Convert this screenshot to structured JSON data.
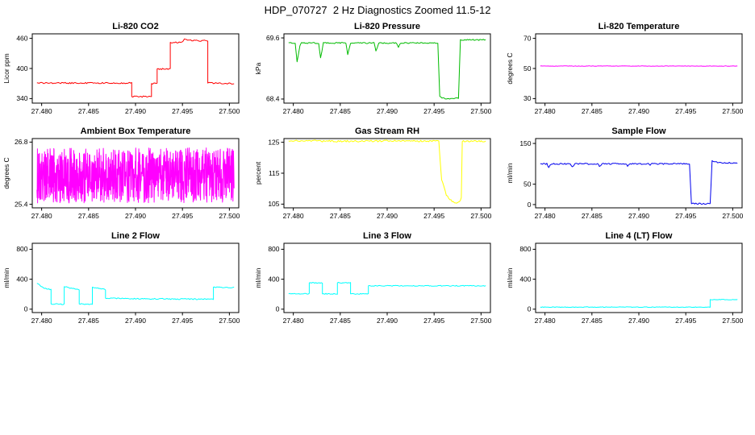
{
  "page_title": "HDP_070727  2 Hz Diagnostics Zoomed 11.5-12",
  "x_axis": {
    "range": [
      27.479,
      27.501
    ],
    "ticks": [
      27.48,
      27.485,
      27.49,
      27.495,
      27.5
    ],
    "tick_labels": [
      "27.480",
      "27.485",
      "27.490",
      "27.495",
      "27.500"
    ]
  },
  "chart_data": [
    {
      "type": "line",
      "title": "Li-820 CO2",
      "ylabel": "Licor ppm",
      "color": "#FF0000",
      "ylim": [
        331,
        469
      ],
      "y_ticks": [
        340,
        400,
        460
      ],
      "y_tick_labels": [
        "340",
        "400",
        "460"
      ],
      "jitter": 1.3,
      "points": [
        [
          27.4795,
          371
        ],
        [
          27.4896,
          371
        ],
        [
          27.4896,
          344
        ],
        [
          27.4917,
          344
        ],
        [
          27.4917,
          370
        ],
        [
          27.4923,
          370
        ],
        [
          27.4923,
          399
        ],
        [
          27.4937,
          399
        ],
        [
          27.4937,
          452
        ],
        [
          27.495,
          452
        ],
        [
          27.4952,
          458
        ],
        [
          27.496,
          456
        ],
        [
          27.4977,
          455
        ],
        [
          27.4977,
          371
        ],
        [
          27.5005,
          370
        ]
      ]
    },
    {
      "type": "line",
      "title": "Li-820 Pressure",
      "ylabel": "kPa",
      "color": "#00BB00",
      "ylim": [
        68.32,
        69.68
      ],
      "y_ticks": [
        68.4,
        69.6
      ],
      "y_tick_labels": [
        "68.4",
        "69.6"
      ],
      "jitter": 0.012,
      "points": [
        [
          27.4795,
          69.5
        ],
        [
          27.4802,
          69.5
        ],
        [
          27.4804,
          69.13
        ],
        [
          27.4807,
          69.45
        ],
        [
          27.4809,
          69.5
        ],
        [
          27.4827,
          69.5
        ],
        [
          27.4829,
          69.2
        ],
        [
          27.4832,
          69.5
        ],
        [
          27.4856,
          69.5
        ],
        [
          27.4858,
          69.27
        ],
        [
          27.4861,
          69.5
        ],
        [
          27.4886,
          69.5
        ],
        [
          27.4888,
          69.35
        ],
        [
          27.4891,
          69.5
        ],
        [
          27.491,
          69.5
        ],
        [
          27.4912,
          69.42
        ],
        [
          27.4914,
          69.5
        ],
        [
          27.4954,
          69.5
        ],
        [
          27.4956,
          68.45
        ],
        [
          27.4962,
          68.4
        ],
        [
          27.4976,
          68.42
        ],
        [
          27.4978,
          69.56
        ],
        [
          27.5005,
          69.56
        ]
      ]
    },
    {
      "type": "line",
      "title": "Li-820 Temperature",
      "ylabel": "degrees C",
      "color": "#FF00FF",
      "ylim": [
        27,
        73
      ],
      "y_ticks": [
        30,
        50,
        70
      ],
      "y_tick_labels": [
        "30",
        "50",
        "70"
      ],
      "jitter": 0.12,
      "points": [
        [
          27.4795,
          51.6
        ],
        [
          27.5005,
          51.6
        ]
      ]
    },
    {
      "type": "line",
      "title": "Ambient Box Temperature",
      "ylabel": "degrees C",
      "color": "#FF00FF",
      "ylim": [
        25.32,
        26.88
      ],
      "y_ticks": [
        25.4,
        26.8
      ],
      "y_tick_labels": [
        "25.4",
        "26.8"
      ],
      "noise": {
        "seed": 9,
        "n": 900,
        "mean": 26.05,
        "amplitude": 0.62,
        "x0": 27.4795,
        "x1": 27.5005
      }
    },
    {
      "type": "line",
      "title": "Gas Stream RH",
      "ylabel": "percent",
      "color": "#FFFF00",
      "ylim": [
        103.8,
        126.2
      ],
      "y_ticks": [
        105,
        115,
        125
      ],
      "y_tick_labels": [
        "105",
        "115",
        "125"
      ],
      "jitter": 0.3,
      "points": [
        [
          27.4795,
          125.4
        ],
        [
          27.4955,
          125.4
        ],
        [
          27.4958,
          113
        ],
        [
          27.4963,
          108
        ],
        [
          27.4968,
          106.2
        ],
        [
          27.4974,
          105.2
        ],
        [
          27.4977,
          105.6
        ],
        [
          27.4979,
          107
        ],
        [
          27.498,
          125.4
        ],
        [
          27.5005,
          125.4
        ]
      ]
    },
    {
      "type": "line",
      "title": "Sample Flow",
      "ylabel": "ml/min",
      "color": "#0000EE",
      "ylim": [
        -8,
        162
      ],
      "y_ticks": [
        0,
        50,
        150
      ],
      "y_tick_labels": [
        "0",
        "50",
        "150"
      ],
      "jitter": 1.6,
      "points": [
        [
          27.4795,
          100
        ],
        [
          27.4802,
          100
        ],
        [
          27.4804,
          92
        ],
        [
          27.4807,
          100
        ],
        [
          27.4827,
          100
        ],
        [
          27.4829,
          93
        ],
        [
          27.4832,
          100
        ],
        [
          27.4856,
          100
        ],
        [
          27.4858,
          94
        ],
        [
          27.4861,
          100
        ],
        [
          27.4886,
          100
        ],
        [
          27.4888,
          95
        ],
        [
          27.4891,
          100
        ],
        [
          27.491,
          100
        ],
        [
          27.4912,
          96
        ],
        [
          27.4914,
          100
        ],
        [
          27.4954,
          100
        ],
        [
          27.4956,
          2
        ],
        [
          27.4976,
          2
        ],
        [
          27.4978,
          107
        ],
        [
          27.4984,
          103
        ],
        [
          27.5005,
          102
        ]
      ]
    },
    {
      "type": "line",
      "title": "Line 2 Flow",
      "ylabel": "ml/min",
      "color": "#00FFFF",
      "ylim": [
        -45,
        880
      ],
      "y_ticks": [
        0,
        400,
        800
      ],
      "y_tick_labels": [
        "0",
        "400",
        "800"
      ],
      "jitter": 7,
      "points": [
        [
          27.4795,
          345
        ],
        [
          27.4803,
          280
        ],
        [
          27.481,
          262
        ],
        [
          27.481,
          70
        ],
        [
          27.4824,
          66
        ],
        [
          27.4824,
          300
        ],
        [
          27.484,
          258
        ],
        [
          27.484,
          70
        ],
        [
          27.4854,
          66
        ],
        [
          27.4854,
          295
        ],
        [
          27.4868,
          262
        ],
        [
          27.4868,
          148
        ],
        [
          27.49,
          140
        ],
        [
          27.4983,
          132
        ],
        [
          27.4983,
          295
        ],
        [
          27.5005,
          288
        ]
      ]
    },
    {
      "type": "line",
      "title": "Line 3 Flow",
      "ylabel": "ml/min",
      "color": "#00FFFF",
      "ylim": [
        -45,
        880
      ],
      "y_ticks": [
        0,
        400,
        800
      ],
      "y_tick_labels": [
        "0",
        "400",
        "800"
      ],
      "jitter": 6,
      "points": [
        [
          27.4795,
          205
        ],
        [
          27.4817,
          205
        ],
        [
          27.4817,
          352
        ],
        [
          27.4831,
          352
        ],
        [
          27.4831,
          205
        ],
        [
          27.4847,
          205
        ],
        [
          27.4847,
          352
        ],
        [
          27.4861,
          352
        ],
        [
          27.4861,
          205
        ],
        [
          27.488,
          205
        ],
        [
          27.488,
          312
        ],
        [
          27.5005,
          312
        ]
      ]
    },
    {
      "type": "line",
      "title": "Line 4 (LT) Flow",
      "ylabel": "ml/min",
      "color": "#00FFFF",
      "ylim": [
        -45,
        880
      ],
      "y_ticks": [
        0,
        400,
        800
      ],
      "y_tick_labels": [
        "0",
        "400",
        "800"
      ],
      "jitter": 4,
      "points": [
        [
          27.4795,
          28
        ],
        [
          27.4976,
          28
        ],
        [
          27.4976,
          128
        ],
        [
          27.5005,
          128
        ]
      ]
    }
  ]
}
